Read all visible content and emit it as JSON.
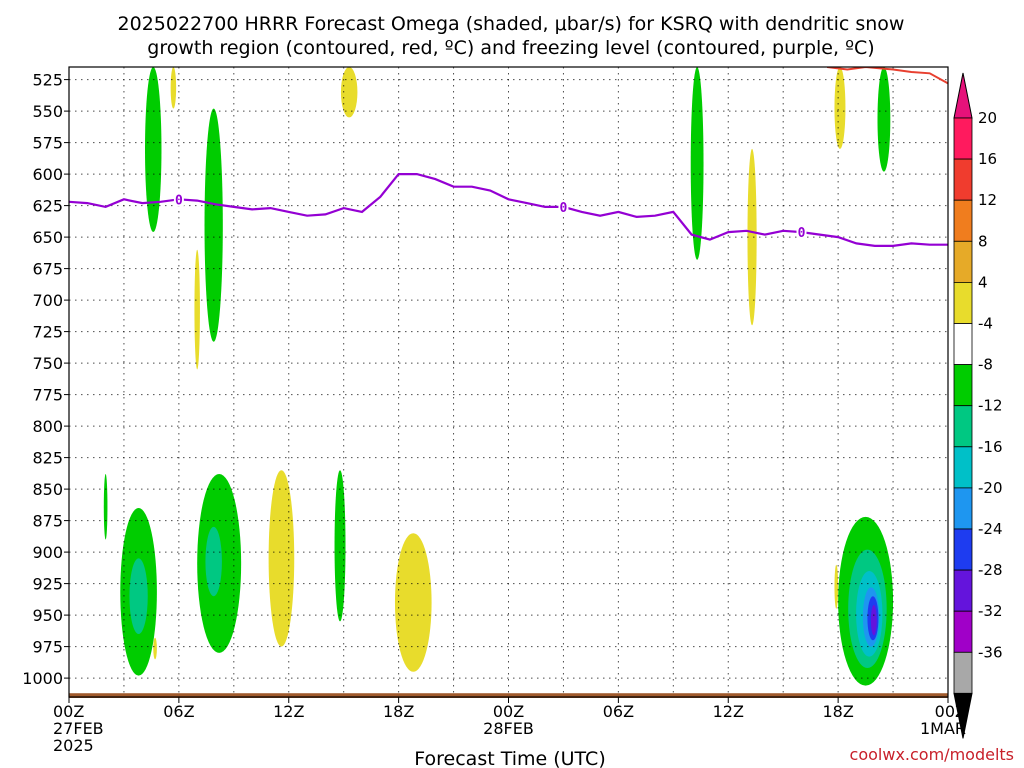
{
  "title_line1": "2025022700 HRRR Forecast Omega (shaded, μbar/s) for KSRQ with dendritic snow",
  "title_line2": "growth region (contoured, red, ºC) and freezing level (contoured, purple, ºC)",
  "credit": "coolwx.com/modelts",
  "chart_data": {
    "type": "heatmap",
    "title": "2025022700 HRRR Forecast Omega (shaded, μbar/s) for KSRQ with dendritic snow growth region (contoured, red, ºC) and freezing level (contoured, purple, ºC)",
    "xlabel": "Forecast Time (UTC)",
    "ylabel": "",
    "x_range_hours": [
      0,
      48
    ],
    "y_range_mb": [
      1015,
      515
    ],
    "y_ticks": [
      525,
      550,
      575,
      600,
      625,
      650,
      675,
      700,
      725,
      750,
      775,
      800,
      825,
      850,
      875,
      900,
      925,
      950,
      975,
      1000
    ],
    "x_ticks": [
      {
        "hour": 0,
        "l1": "00Z",
        "l2": "27FEB",
        "l3": "2025"
      },
      {
        "hour": 6,
        "l1": "06Z",
        "l2": "",
        "l3": ""
      },
      {
        "hour": 12,
        "l1": "12Z",
        "l2": "",
        "l3": ""
      },
      {
        "hour": 18,
        "l1": "18Z",
        "l2": "",
        "l3": ""
      },
      {
        "hour": 24,
        "l1": "00Z",
        "l2": "28FEB",
        "l3": ""
      },
      {
        "hour": 30,
        "l1": "06Z",
        "l2": "",
        "l3": ""
      },
      {
        "hour": 36,
        "l1": "12Z",
        "l2": "",
        "l3": ""
      },
      {
        "hour": 42,
        "l1": "18Z",
        "l2": "",
        "l3": ""
      },
      {
        "hour": 48,
        "l1": "00Z",
        "l2": "1MAR",
        "l3": ""
      }
    ],
    "grid": true,
    "colorbar": {
      "labels": [
        "20",
        "16",
        "12",
        "8",
        "4",
        "-4",
        "-8",
        "-12",
        "-16",
        "-20",
        "-24",
        "-28",
        "-32",
        "-36"
      ],
      "colors": [
        "#ff1a5e",
        "#f03c2e",
        "#f07d1e",
        "#e6aa28",
        "#e8dc2c",
        "#ffffff",
        "#00cc00",
        "#00c882",
        "#00c0c8",
        "#1e96f0",
        "#1e3cf0",
        "#6414dc",
        "#a000c8",
        "#a8a8a8"
      ],
      "top_arrow_color": "#e6127a",
      "bottom_arrow_color": "#000000"
    },
    "freezing_level": {
      "color": "#9400d3",
      "contour_label": "0",
      "label_hours": [
        6,
        27,
        40
      ],
      "points": [
        [
          0,
          622
        ],
        [
          1,
          623
        ],
        [
          2,
          626
        ],
        [
          3,
          620
        ],
        [
          4,
          623
        ],
        [
          5,
          622
        ],
        [
          6,
          620
        ],
        [
          7,
          621
        ],
        [
          8,
          624
        ],
        [
          9,
          626
        ],
        [
          10,
          628
        ],
        [
          11,
          627
        ],
        [
          12,
          630
        ],
        [
          13,
          633
        ],
        [
          14,
          632
        ],
        [
          15,
          627
        ],
        [
          16,
          630
        ],
        [
          17,
          618
        ],
        [
          18,
          600
        ],
        [
          19,
          600
        ],
        [
          20,
          604
        ],
        [
          21,
          610
        ],
        [
          22,
          610
        ],
        [
          23,
          613
        ],
        [
          24,
          620
        ],
        [
          25,
          623
        ],
        [
          26,
          626
        ],
        [
          27,
          626
        ],
        [
          28,
          630
        ],
        [
          29,
          633
        ],
        [
          30,
          630
        ],
        [
          31,
          634
        ],
        [
          32,
          633
        ],
        [
          33,
          630
        ],
        [
          34,
          648
        ],
        [
          35,
          652
        ],
        [
          36,
          646
        ],
        [
          37,
          645
        ],
        [
          38,
          648
        ],
        [
          39,
          645
        ],
        [
          40,
          646
        ],
        [
          41,
          648
        ],
        [
          42,
          650
        ],
        [
          43,
          655
        ],
        [
          44,
          657
        ],
        [
          45,
          657
        ],
        [
          46,
          655
        ],
        [
          47,
          656
        ],
        [
          48,
          656
        ]
      ]
    },
    "dgz_contour": {
      "color": "#e84030",
      "points": [
        [
          41.4,
          515
        ],
        [
          42.5,
          517
        ],
        [
          43.5,
          515
        ],
        [
          45,
          517
        ],
        [
          46,
          519
        ],
        [
          47,
          520
        ],
        [
          48,
          528
        ]
      ]
    },
    "omega_regions": [
      {
        "value": -6,
        "hour": 4.6,
        "half_width_h": 0.45,
        "top_mb": 515,
        "bottom_mb": 646
      },
      {
        "value": -6,
        "hour": 7.9,
        "half_width_h": 0.5,
        "top_mb": 548,
        "bottom_mb": 733
      },
      {
        "value": -6,
        "hour": 34.3,
        "half_width_h": 0.35,
        "top_mb": 515,
        "bottom_mb": 668
      },
      {
        "value": -6,
        "hour": 44.5,
        "half_width_h": 0.35,
        "top_mb": 515,
        "bottom_mb": 598
      },
      {
        "value": 6,
        "hour": 15.3,
        "half_width_h": 0.45,
        "top_mb": 515,
        "bottom_mb": 555
      },
      {
        "value": 6,
        "hour": 5.7,
        "half_width_h": 0.15,
        "top_mb": 515,
        "bottom_mb": 548
      },
      {
        "value": 6,
        "hour": 7.0,
        "half_width_h": 0.15,
        "top_mb": 660,
        "bottom_mb": 755
      },
      {
        "value": 6,
        "hour": 37.3,
        "half_width_h": 0.25,
        "top_mb": 580,
        "bottom_mb": 720
      },
      {
        "value": 6,
        "hour": 42.1,
        "half_width_h": 0.3,
        "top_mb": 515,
        "bottom_mb": 580
      },
      {
        "value": -6,
        "hour": 2.0,
        "half_width_h": 0.1,
        "top_mb": 838,
        "bottom_mb": 890
      },
      {
        "value": -6,
        "hour": 3.8,
        "half_width_h": 1.0,
        "top_mb": 865,
        "bottom_mb": 998
      },
      {
        "value": -10,
        "hour": 3.8,
        "half_width_h": 0.5,
        "top_mb": 905,
        "bottom_mb": 965
      },
      {
        "value": -6,
        "hour": 8.2,
        "half_width_h": 1.2,
        "top_mb": 838,
        "bottom_mb": 980
      },
      {
        "value": -10,
        "hour": 7.9,
        "half_width_h": 0.45,
        "top_mb": 880,
        "bottom_mb": 935
      },
      {
        "value": 6,
        "hour": 11.6,
        "half_width_h": 0.7,
        "top_mb": 835,
        "bottom_mb": 975
      },
      {
        "value": -6,
        "hour": 14.8,
        "half_width_h": 0.3,
        "top_mb": 835,
        "bottom_mb": 955
      },
      {
        "value": 6,
        "hour": 18.8,
        "half_width_h": 1.0,
        "top_mb": 885,
        "bottom_mb": 995
      },
      {
        "value": 6,
        "hour": 4.7,
        "half_width_h": 0.1,
        "top_mb": 968,
        "bottom_mb": 985
      },
      {
        "value": 6,
        "hour": 41.9,
        "half_width_h": 0.1,
        "top_mb": 910,
        "bottom_mb": 945
      },
      {
        "value": -6,
        "hour": 43.5,
        "half_width_h": 1.5,
        "top_mb": 872,
        "bottom_mb": 1006
      },
      {
        "value": -10,
        "hour": 43.6,
        "half_width_h": 1.05,
        "top_mb": 898,
        "bottom_mb": 992
      },
      {
        "value": -14,
        "hour": 43.7,
        "half_width_h": 0.72,
        "top_mb": 915,
        "bottom_mb": 983
      },
      {
        "value": -18,
        "hour": 43.8,
        "half_width_h": 0.45,
        "top_mb": 928,
        "bottom_mb": 975
      },
      {
        "value": -22,
        "hour": 43.9,
        "half_width_h": 0.3,
        "top_mb": 935,
        "bottom_mb": 970
      },
      {
        "value": -26,
        "hour": 43.95,
        "half_width_h": 0.16,
        "top_mb": 942,
        "bottom_mb": 966
      }
    ],
    "terrain": {
      "color": "#a05a2c",
      "top_mb": 1012,
      "bottom_mb": 1015
    }
  }
}
